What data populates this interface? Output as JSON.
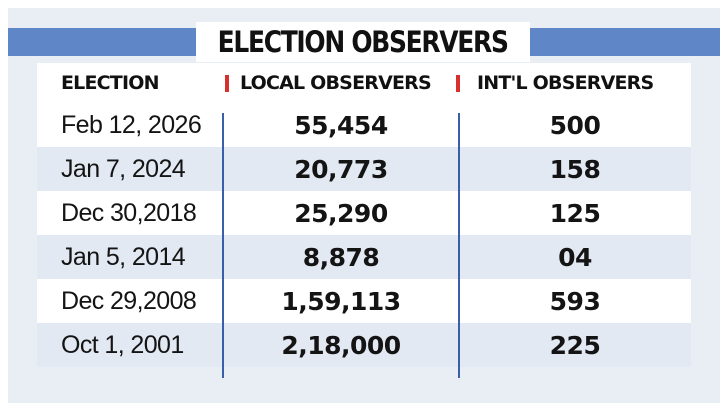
{
  "title": "ELECTION OBSERVERS",
  "headers": {
    "election": "ELECTION",
    "local": "LOCAL OBSERVERS",
    "intl": "INT'L OBSERVERS"
  },
  "rows": [
    {
      "date": "Feb 12, 2026",
      "local": "55,454",
      "intl": "500"
    },
    {
      "date": "Jan 7, 2024",
      "local": "20,773",
      "intl": "158"
    },
    {
      "date": "Dec 30,2018",
      "local": "25,290",
      "intl": "125"
    },
    {
      "date": "Jan 5, 2014",
      "local": "8,878",
      "intl": "04"
    },
    {
      "date": "Dec 29,2008",
      "local": "1,59,113",
      "intl": "593"
    },
    {
      "date": "Oct 1, 2001",
      "local": "2,18,000",
      "intl": "225"
    }
  ],
  "colors": {
    "accent_blue": "#5f87c8",
    "separator_red": "#d7312e",
    "row_tint": "#e2e9f3",
    "panel_bg": "#e9eef5",
    "divider_blue": "#3a5ea8"
  }
}
